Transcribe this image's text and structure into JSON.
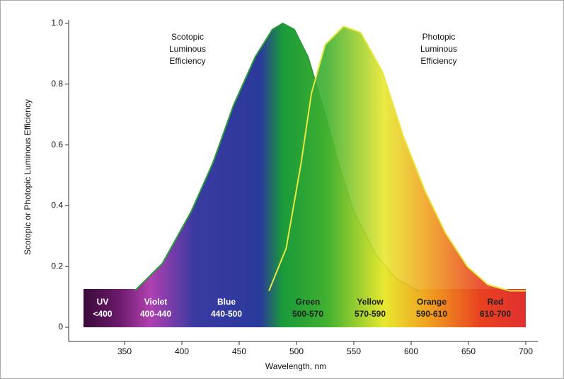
{
  "chart_data": {
    "type": "area",
    "xlabel": "Wavelength, nm",
    "ylabel": "Scotopic or Photopic Luminous Efficiency",
    "xlim": [
      314,
      700
    ],
    "ylim": [
      0,
      1
    ],
    "xticks": [
      350,
      400,
      450,
      500,
      550,
      600,
      650,
      700
    ],
    "yticks": [
      0,
      0.2,
      0.4,
      0.6,
      0.8,
      {
        "value": 1,
        "label": "1.0"
      }
    ],
    "series": [
      {
        "x": [
          359,
          383,
          408,
          427,
          445,
          464,
          479,
          488,
          498,
          510,
          525,
          538,
          550,
          569,
          587,
          606
        ],
        "values": [
          0.12,
          0.21,
          0.38,
          0.54,
          0.73,
          0.89,
          0.98,
          1.0,
          0.98,
          0.89,
          0.7,
          0.52,
          0.38,
          0.24,
          0.16,
          0.12
        ],
        "color": "#2a9a3a"
      },
      {
        "x": [
          476,
          491,
          504,
          513,
          525,
          541,
          556,
          575,
          593,
          612,
          630,
          649,
          667,
          686,
          700
        ],
        "values": [
          0.12,
          0.26,
          0.54,
          0.77,
          0.93,
          0.99,
          0.97,
          0.84,
          0.63,
          0.45,
          0.31,
          0.2,
          0.14,
          0.12,
          0.12
        ],
        "color": "#e8e840"
      }
    ],
    "annotations": [
      {
        "lines": [
          "Scotopic",
          "Luminous",
          "Efficiency"
        ]
      },
      {
        "lines": [
          "Photopic",
          "Luminous",
          "Efficiency"
        ]
      }
    ],
    "bands": [
      {
        "name": "UV",
        "range": "<400"
      },
      {
        "name": "Violet",
        "range": "400-440"
      },
      {
        "name": "Blue",
        "range": "440-500"
      },
      {
        "name": "Green",
        "range": "500-570"
      },
      {
        "name": "Yellow",
        "range": "570-590"
      },
      {
        "name": "Orange",
        "range": "590-610"
      },
      {
        "name": "Red",
        "range": "610-700"
      }
    ]
  }
}
